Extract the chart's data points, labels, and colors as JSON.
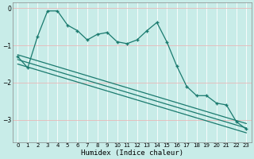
{
  "bg_color": "#c8ece8",
  "line_color": "#1a7a6e",
  "grid_color": "#b0ddd8",
  "xlabel": "Humidex (Indice chaleur)",
  "ylim": [
    -3.6,
    0.15
  ],
  "xlim": [
    -0.5,
    23.5
  ],
  "yticks": [
    0,
    -1,
    -2,
    -3
  ],
  "xticks": [
    0,
    1,
    2,
    3,
    4,
    5,
    6,
    7,
    8,
    9,
    10,
    11,
    12,
    13,
    14,
    15,
    16,
    17,
    18,
    19,
    20,
    21,
    22,
    23
  ],
  "jagged_y": [
    -1.3,
    -1.6,
    -0.75,
    -0.07,
    -0.07,
    -0.45,
    -0.6,
    -0.85,
    -0.7,
    -0.65,
    -0.9,
    -0.95,
    -0.85,
    -0.6,
    -0.38,
    -0.9,
    -1.55,
    -2.1,
    -2.35,
    -2.35,
    -2.55,
    -2.6,
    -3.05,
    -3.25
  ],
  "straight_lines": [
    {
      "x0": 0,
      "y0": -1.25,
      "x1": 23,
      "y1": -3.1
    },
    {
      "x0": 0,
      "y0": -1.38,
      "x1": 23,
      "y1": -3.22
    },
    {
      "x0": 0,
      "y0": -1.5,
      "x1": 23,
      "y1": -3.35
    }
  ]
}
